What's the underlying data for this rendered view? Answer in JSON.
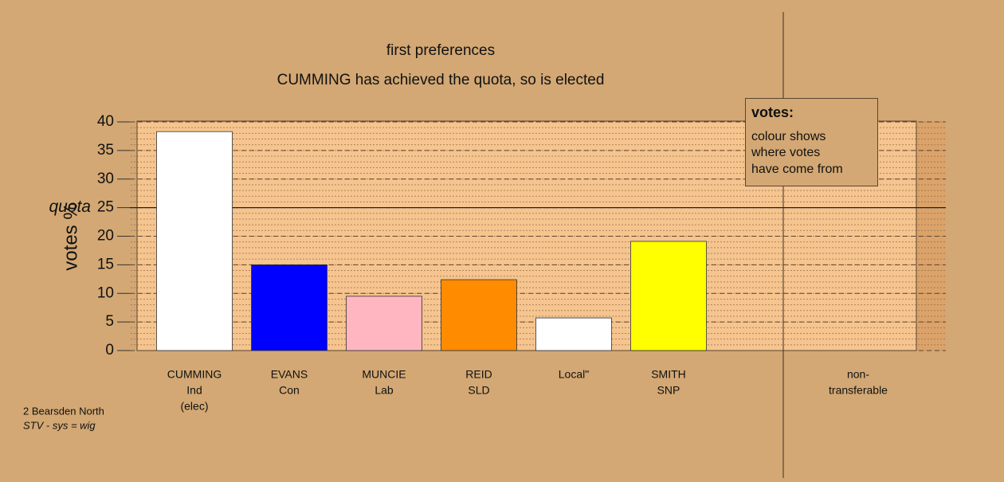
{
  "chart_data": {
    "type": "bar",
    "title": "first preferences",
    "subtitle": "CUMMING has achieved the quota, so is elected",
    "y_label": "votes %",
    "categories": [
      [
        "CUMMING",
        "Ind",
        "(elec)"
      ],
      [
        "EVANS",
        "Con"
      ],
      [
        "MUNCIE",
        "Lab"
      ],
      [
        "REID",
        "SLD"
      ],
      [
        "Local\""
      ],
      [
        "SMITH",
        "SNP"
      ],
      [
        "non-",
        "transferable"
      ]
    ],
    "values": [
      38.3,
      15.0,
      9.5,
      12.4,
      5.7,
      19.1,
      0
    ],
    "colors": [
      "#ffffff",
      "#0000ff",
      "#ffb6c1",
      "#ff8c00",
      "#ffffff",
      "#ffff00",
      null
    ],
    "ylim": [
      0,
      40
    ],
    "yticks": [
      0,
      5,
      10,
      15,
      20,
      25,
      30,
      35,
      40
    ],
    "grid": true,
    "quota": 25,
    "quota_label": "quota",
    "legend": {
      "title": "votes:",
      "lines": [
        "colour shows",
        "where votes",
        "have come from"
      ]
    },
    "footer": [
      "2 Bearsden North",
      "STV - sys = wig"
    ]
  }
}
